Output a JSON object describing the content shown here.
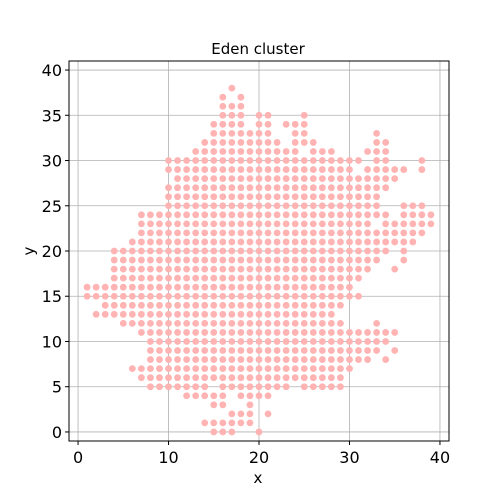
{
  "chart_data": {
    "type": "scatter",
    "title": "Eden cluster",
    "xlabel": "x",
    "ylabel": "y",
    "xlim": [
      -1,
      41
    ],
    "ylim": [
      -1,
      41
    ],
    "xticks": [
      0,
      10,
      20,
      30,
      40
    ],
    "yticks": [
      0,
      5,
      10,
      15,
      20,
      25,
      30,
      35,
      40
    ],
    "grid": true,
    "marker_color": "#ffb3b3",
    "points_by_row": {
      "38": [
        [
          17,
          17
        ]
      ],
      "37": [
        [
          16,
          16
        ],
        [
          18,
          18
        ]
      ],
      "36": [
        [
          16,
          18
        ]
      ],
      "35": [
        [
          16,
          18
        ],
        [
          20,
          21
        ],
        [
          25,
          25
        ]
      ],
      "34": [
        [
          15,
          18
        ],
        [
          20,
          21
        ],
        [
          23,
          25
        ]
      ],
      "33": [
        [
          15,
          21
        ],
        [
          24,
          25
        ],
        [
          33,
          33
        ]
      ],
      "32": [
        [
          14,
          22
        ],
        [
          24,
          26
        ],
        [
          33,
          34
        ]
      ],
      "31": [
        [
          13,
          24
        ],
        [
          26,
          28
        ],
        [
          32,
          34
        ]
      ],
      "30": [
        [
          10,
          31
        ],
        [
          33,
          34
        ],
        [
          38,
          38
        ]
      ],
      "29": [
        [
          10,
          30
        ],
        [
          32,
          36
        ],
        [
          38,
          38
        ]
      ],
      "28": [
        [
          11,
          35
        ]
      ],
      "27": [
        [
          10,
          34
        ]
      ],
      "26": [
        [
          10,
          33
        ]
      ],
      "25": [
        [
          10,
          33
        ],
        [
          36,
          38
        ]
      ],
      "24": [
        [
          7,
          34
        ],
        [
          36,
          39
        ]
      ],
      "23": [
        [
          7,
          32
        ],
        [
          34,
          39
        ]
      ],
      "22": [
        [
          7,
          38
        ]
      ],
      "21": [
        [
          6,
          37
        ]
      ],
      "20": [
        [
          4,
          34
        ],
        [
          36,
          36
        ]
      ],
      "19": [
        [
          4,
          33
        ],
        [
          36,
          36
        ]
      ],
      "18": [
        [
          4,
          32
        ],
        [
          35,
          35
        ]
      ],
      "17": [
        [
          4,
          31
        ]
      ],
      "16": [
        [
          1,
          30
        ]
      ],
      "15": [
        [
          1,
          31
        ]
      ],
      "14": [
        [
          3,
          29
        ]
      ],
      "13": [
        [
          2,
          28
        ]
      ],
      "12": [
        [
          5,
          29
        ],
        [
          33,
          33
        ]
      ],
      "11": [
        [
          7,
          35
        ]
      ],
      "10": [
        [
          8,
          34
        ]
      ],
      "9": [
        [
          8,
          33
        ],
        [
          35,
          35
        ]
      ],
      "8": [
        [
          8,
          32
        ],
        [
          34,
          34
        ]
      ],
      "7": [
        [
          6,
          30
        ]
      ],
      "6": [
        [
          7,
          29
        ]
      ],
      "5": [
        [
          8,
          14
        ],
        [
          16,
          23
        ],
        [
          25,
          29
        ]
      ],
      "4": [
        [
          12,
          16
        ],
        [
          18,
          21
        ]
      ],
      "3": [
        [
          15,
          16
        ],
        [
          19,
          19
        ]
      ],
      "2": [
        [
          17,
          19
        ],
        [
          21,
          21
        ]
      ],
      "1": [
        [
          14,
          19
        ]
      ],
      "0": [
        [
          15,
          17
        ],
        [
          20,
          20
        ]
      ]
    }
  }
}
